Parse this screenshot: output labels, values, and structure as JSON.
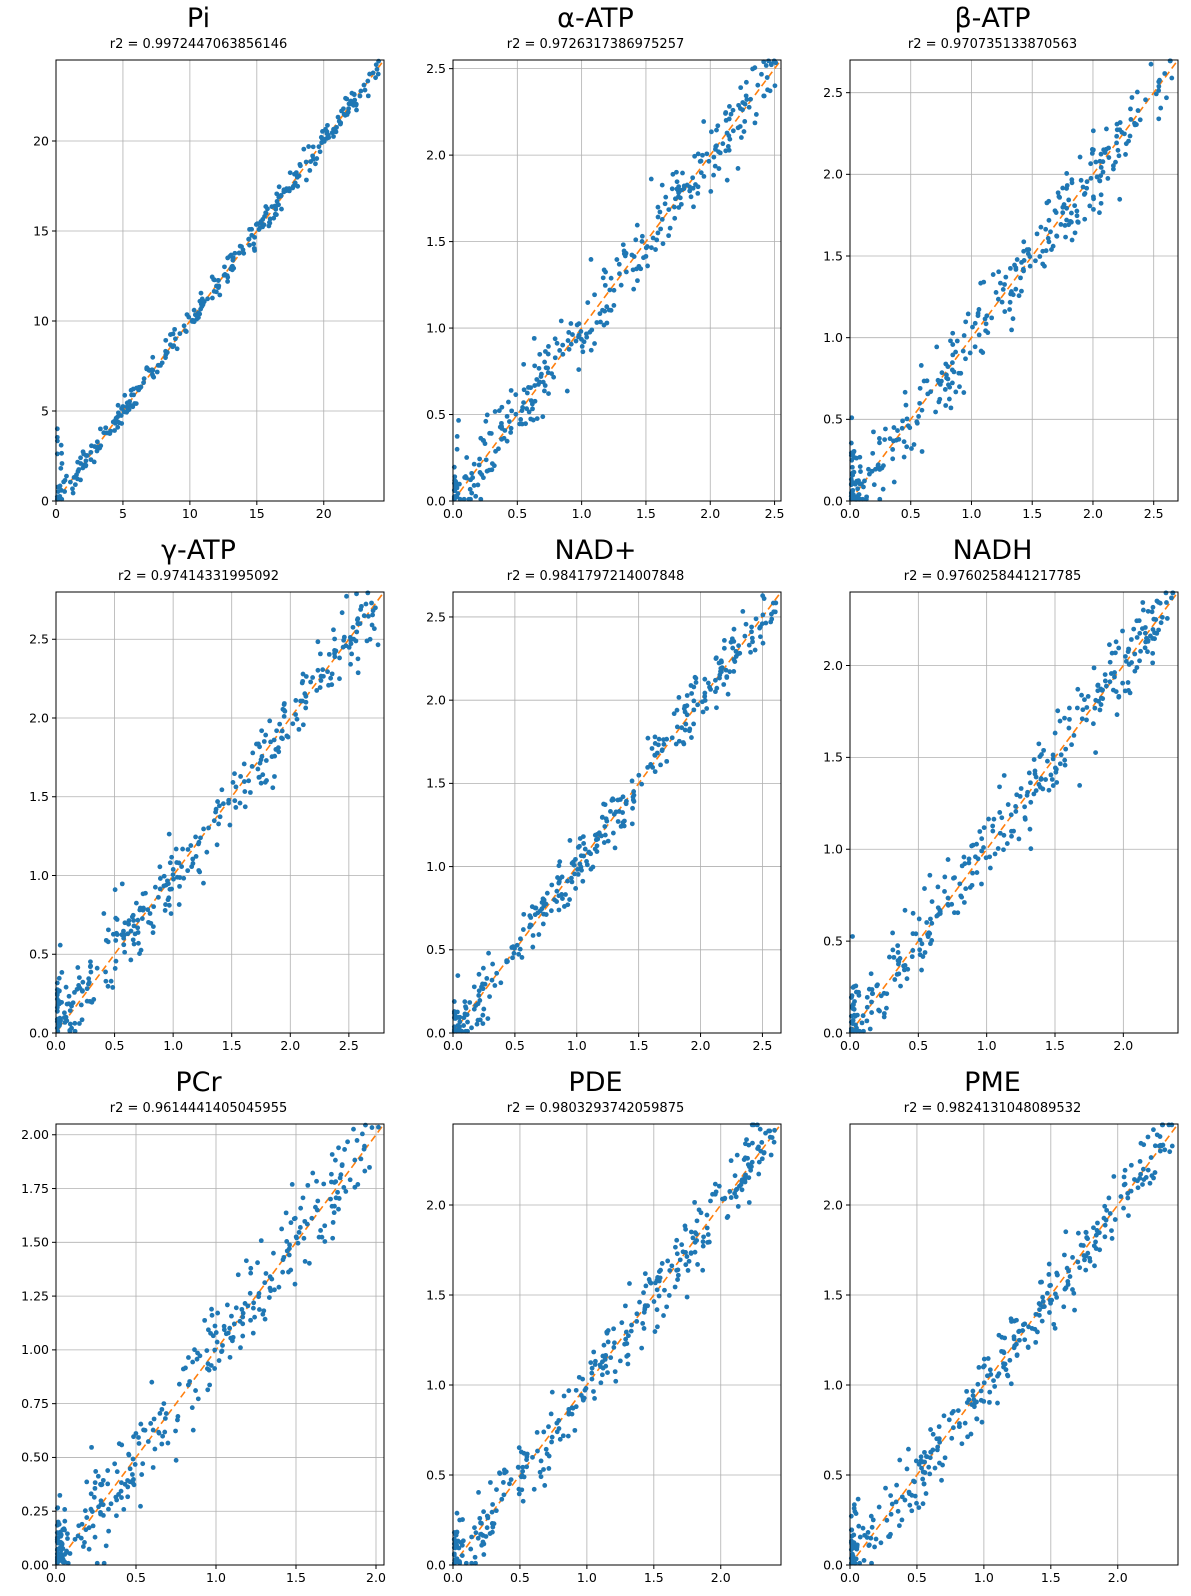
{
  "colors": {
    "point": "#1f77b4",
    "identity_line": "#ff7f0e",
    "grid": "#b0b0b0",
    "axis": "#000000",
    "background": "#ffffff"
  },
  "chart_data": [
    {
      "type": "scatter",
      "title": "Pi",
      "subtitle": "r2 = 0.9972447063856146",
      "r2": 0.9972447063856146,
      "xlabel": "",
      "ylabel": "",
      "xlim": [
        0,
        24.5
      ],
      "ylim": [
        0,
        24.5
      ],
      "xticks": [
        0,
        5,
        10,
        15,
        20
      ],
      "yticks": [
        0,
        5,
        10,
        15,
        20
      ],
      "xtick_decimals": 0,
      "ytick_decimals": 0,
      "n_points": 330,
      "noise_sd": 0.35,
      "zero_cluster_frac": 0.03,
      "seed": 1,
      "grid": true,
      "identity_line": {
        "style": "dashed",
        "color": "#ff7f0e"
      }
    },
    {
      "type": "scatter",
      "title": "α-ATP",
      "subtitle": "r2 = 0.9726317386975257",
      "r2": 0.9726317386975257,
      "xlabel": "",
      "ylabel": "",
      "xlim": [
        0,
        2.55
      ],
      "ylim": [
        0,
        2.55
      ],
      "xticks": [
        0,
        0.5,
        1.0,
        1.5,
        2.0,
        2.5
      ],
      "yticks": [
        0,
        0.5,
        1.0,
        1.5,
        2.0,
        2.5
      ],
      "xtick_decimals": 1,
      "ytick_decimals": 1,
      "n_points": 330,
      "noise_sd": 0.11,
      "zero_cluster_frac": 0.05,
      "seed": 2,
      "grid": true,
      "identity_line": {
        "style": "dashed",
        "color": "#ff7f0e"
      }
    },
    {
      "type": "scatter",
      "title": "β-ATP",
      "subtitle": "r2 = 0.970735133870563",
      "r2": 0.970735133870563,
      "xlabel": "",
      "ylabel": "",
      "xlim": [
        0,
        2.7
      ],
      "ylim": [
        0,
        2.7
      ],
      "xticks": [
        0,
        0.5,
        1.0,
        1.5,
        2.0,
        2.5
      ],
      "yticks": [
        0,
        0.5,
        1.0,
        1.5,
        2.0,
        2.5
      ],
      "xtick_decimals": 1,
      "ytick_decimals": 1,
      "n_points": 330,
      "noise_sd": 0.12,
      "zero_cluster_frac": 0.1,
      "seed": 3,
      "grid": true,
      "identity_line": {
        "style": "dashed",
        "color": "#ff7f0e"
      }
    },
    {
      "type": "scatter",
      "title": "γ-ATP",
      "subtitle": "r2 = 0.97414331995092",
      "r2": 0.97414331995092,
      "xlabel": "",
      "ylabel": "",
      "xlim": [
        0,
        2.8
      ],
      "ylim": [
        0,
        2.8
      ],
      "xticks": [
        0,
        0.5,
        1.0,
        1.5,
        2.0,
        2.5
      ],
      "yticks": [
        0,
        0.5,
        1.0,
        1.5,
        2.0,
        2.5
      ],
      "xtick_decimals": 1,
      "ytick_decimals": 1,
      "n_points": 330,
      "noise_sd": 0.12,
      "zero_cluster_frac": 0.1,
      "seed": 4,
      "grid": true,
      "identity_line": {
        "style": "dashed",
        "color": "#ff7f0e"
      }
    },
    {
      "type": "scatter",
      "title": "NAD+",
      "subtitle": "r2 = 0.9841797214007848",
      "r2": 0.9841797214007848,
      "xlabel": "",
      "ylabel": "",
      "xlim": [
        0,
        2.65
      ],
      "ylim": [
        0,
        2.65
      ],
      "xticks": [
        0,
        0.5,
        1.0,
        1.5,
        2.0,
        2.5
      ],
      "yticks": [
        0,
        0.5,
        1.0,
        1.5,
        2.0,
        2.5
      ],
      "xtick_decimals": 1,
      "ytick_decimals": 1,
      "n_points": 330,
      "noise_sd": 0.085,
      "zero_cluster_frac": 0.05,
      "seed": 5,
      "grid": true,
      "identity_line": {
        "style": "dashed",
        "color": "#ff7f0e"
      }
    },
    {
      "type": "scatter",
      "title": "NADH",
      "subtitle": "r2 = 0.9760258441217785",
      "r2": 0.9760258441217785,
      "xlabel": "",
      "ylabel": "",
      "xlim": [
        0,
        2.4
      ],
      "ylim": [
        0,
        2.4
      ],
      "xticks": [
        0,
        0.5,
        1.0,
        1.5,
        2.0
      ],
      "yticks": [
        0,
        0.5,
        1.0,
        1.5,
        2.0
      ],
      "xtick_decimals": 1,
      "ytick_decimals": 1,
      "n_points": 330,
      "noise_sd": 0.1,
      "zero_cluster_frac": 0.08,
      "seed": 6,
      "grid": true,
      "identity_line": {
        "style": "dashed",
        "color": "#ff7f0e"
      }
    },
    {
      "type": "scatter",
      "title": "PCr",
      "subtitle": "r2 = 0.9614441405045955",
      "r2": 0.9614441405045955,
      "xlabel": "",
      "ylabel": "",
      "xlim": [
        0,
        2.05
      ],
      "ylim": [
        0,
        2.05
      ],
      "xticks": [
        0,
        0.5,
        1.0,
        1.5,
        2.0
      ],
      "yticks": [
        0,
        0.25,
        0.5,
        0.75,
        1.0,
        1.25,
        1.5,
        1.75,
        2.0
      ],
      "xtick_decimals": 1,
      "ytick_decimals": 2,
      "n_points": 330,
      "noise_sd": 0.105,
      "zero_cluster_frac": 0.14,
      "seed": 7,
      "grid": true,
      "identity_line": {
        "style": "dashed",
        "color": "#ff7f0e"
      }
    },
    {
      "type": "scatter",
      "title": "PDE",
      "subtitle": "r2 = 0.9803293742059875",
      "r2": 0.9803293742059875,
      "xlabel": "",
      "ylabel": "",
      "xlim": [
        0,
        2.45
      ],
      "ylim": [
        0,
        2.45
      ],
      "xticks": [
        0,
        0.5,
        1.0,
        1.5,
        2.0
      ],
      "yticks": [
        0,
        0.5,
        1.0,
        1.5,
        2.0
      ],
      "xtick_decimals": 1,
      "ytick_decimals": 1,
      "n_points": 330,
      "noise_sd": 0.1,
      "zero_cluster_frac": 0.07,
      "seed": 8,
      "grid": true,
      "identity_line": {
        "style": "dashed",
        "color": "#ff7f0e"
      }
    },
    {
      "type": "scatter",
      "title": "PME",
      "subtitle": "r2 = 0.9824131048089532",
      "r2": 0.9824131048089532,
      "xlabel": "",
      "ylabel": "",
      "xlim": [
        0,
        2.45
      ],
      "ylim": [
        0,
        2.45
      ],
      "xticks": [
        0,
        0.5,
        1.0,
        1.5,
        2.0
      ],
      "yticks": [
        0,
        0.5,
        1.0,
        1.5,
        2.0
      ],
      "xtick_decimals": 1,
      "ytick_decimals": 1,
      "n_points": 330,
      "noise_sd": 0.09,
      "zero_cluster_frac": 0.08,
      "seed": 9,
      "grid": true,
      "identity_line": {
        "style": "dashed",
        "color": "#ff7f0e"
      }
    }
  ]
}
